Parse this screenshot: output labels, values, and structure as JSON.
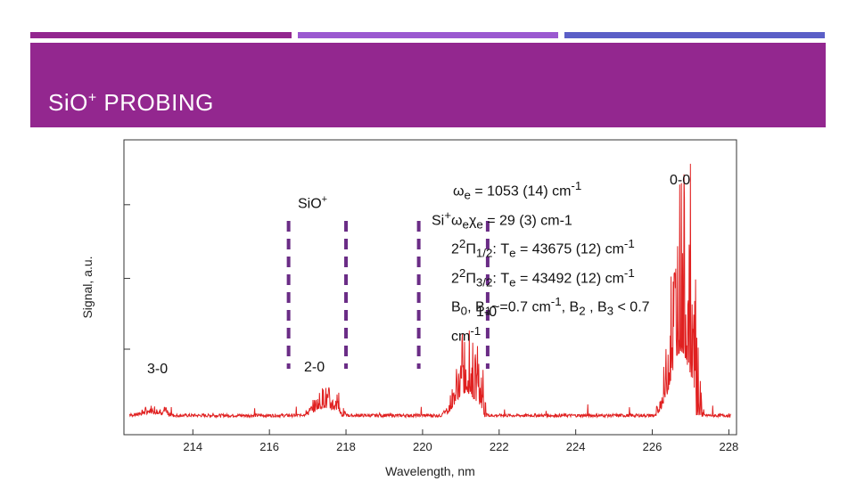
{
  "slide": {
    "title": "SiO",
    "title_sup": "+",
    "title_rest": " PROBING",
    "colors": {
      "header": "#93278f",
      "bar1": "#93278f",
      "bar2": "#9b59d0",
      "bar3": "#5b5fc7",
      "trace": "#e02020",
      "dashes": "#6a2c86"
    }
  },
  "annotations": {
    "sio_label": "SiO",
    "sio_sup": "+",
    "band_00": "0-0",
    "band_10": "1-0",
    "band_20": "2-0",
    "band_30": "3-0",
    "line1_pre": "ω",
    "line1_sub": "e",
    "line1_post": " = 1053 (14) cm",
    "line1_sup": "-1",
    "line2_pre": "Si",
    "line2_sup1": "+",
    "line2_w": "ω",
    "line2_sub1": "e",
    "line2_x": "χ",
    "line2_sub2": "e",
    "line2_post": " = 29 (3) cm-1",
    "line3_a": "2",
    "line3_sup": "2",
    "line3_b": "Π",
    "line3_sub": "1/2",
    "line3_c": ":  T",
    "line3_sub2": "e",
    "line3_d": " = 43675 (12) cm",
    "line3_sup2": "-1",
    "line4_a": "2",
    "line4_sup": "2",
    "line4_b": "Π",
    "line4_sub": "3/2",
    "line4_c": ":  T",
    "line4_sub2": "e",
    "line4_d": " = 43492 (12) cm",
    "line4_sup2": "-1",
    "line5_a": "B",
    "line5_sub0": "0",
    "line5_b": ", B",
    "line5_sub1": "1",
    "line5_c": "~=0.7 cm",
    "line5_sup": "-1",
    "line5_d": ", B",
    "line5_sub2": "2",
    "line5_e": " , B",
    "line5_sub3": "3",
    "line5_f": " < 0.7",
    "line6_a": "cm",
    "line6_sup": "-1"
  },
  "chart_data": {
    "type": "line",
    "xlabel": "Wavelength, nm",
    "ylabel": "Signal, a.u.",
    "xlim": [
      212.2,
      228.2
    ],
    "ylim": [
      0,
      1
    ],
    "x_ticks": [
      214,
      216,
      218,
      220,
      222,
      224,
      226,
      228
    ],
    "x_tick_labels": [
      "214",
      "216",
      "218",
      "220",
      "222",
      "224",
      "226",
      "228"
    ],
    "y_ticks": [
      0.29,
      0.53,
      0.78
    ],
    "bands": [
      {
        "label": "3-0",
        "center": 213.2,
        "peak": 0.04
      },
      {
        "label": "2-0",
        "center": 217.7,
        "peak": 0.12
      },
      {
        "label": "1-0",
        "center": 221.4,
        "peak": 0.35
      },
      {
        "label": "0-0",
        "center": 227.0,
        "peak": 0.96
      }
    ],
    "dashed_markers_x": [
      216.5,
      218.0,
      219.9,
      221.7
    ],
    "grid": false
  }
}
